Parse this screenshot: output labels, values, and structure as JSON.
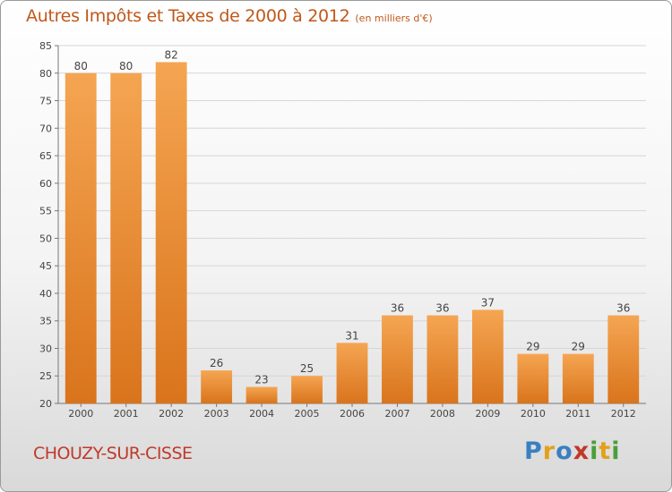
{
  "header": {
    "title": "Autres Impôts et Taxes de 2000 à 2012",
    "unit": "(en milliers d'€)"
  },
  "footer": {
    "commune": "CHOUZY-SUR-CISSE",
    "logo_letters": [
      "P",
      "r",
      "o",
      "x",
      "i",
      "t",
      "i"
    ],
    "logo_colors": [
      "#3a7fc1",
      "#e2a11c",
      "#3a7fc1",
      "#c0392b",
      "#4a9e3a",
      "#e2a11c",
      "#4a9e3a"
    ]
  },
  "colors": {
    "bar_light": "#f5a552",
    "bar_dark": "#d9741c",
    "title": "#c0581a",
    "grid": "#d6d6d6"
  },
  "chart_data": {
    "type": "bar",
    "title": "Autres Impôts et Taxes de 2000 à 2012",
    "subtitle": "(en milliers d'€)",
    "categories": [
      "2000",
      "2001",
      "2002",
      "2003",
      "2004",
      "2005",
      "2006",
      "2007",
      "2008",
      "2009",
      "2010",
      "2011",
      "2012"
    ],
    "values": [
      80,
      80,
      82,
      26,
      23,
      25,
      31,
      36,
      36,
      37,
      29,
      29,
      36
    ],
    "ylim": [
      20,
      85
    ],
    "yticks": [
      20,
      25,
      30,
      35,
      40,
      45,
      50,
      55,
      60,
      65,
      70,
      75,
      80,
      85
    ],
    "grid": true,
    "data_labels": true
  }
}
